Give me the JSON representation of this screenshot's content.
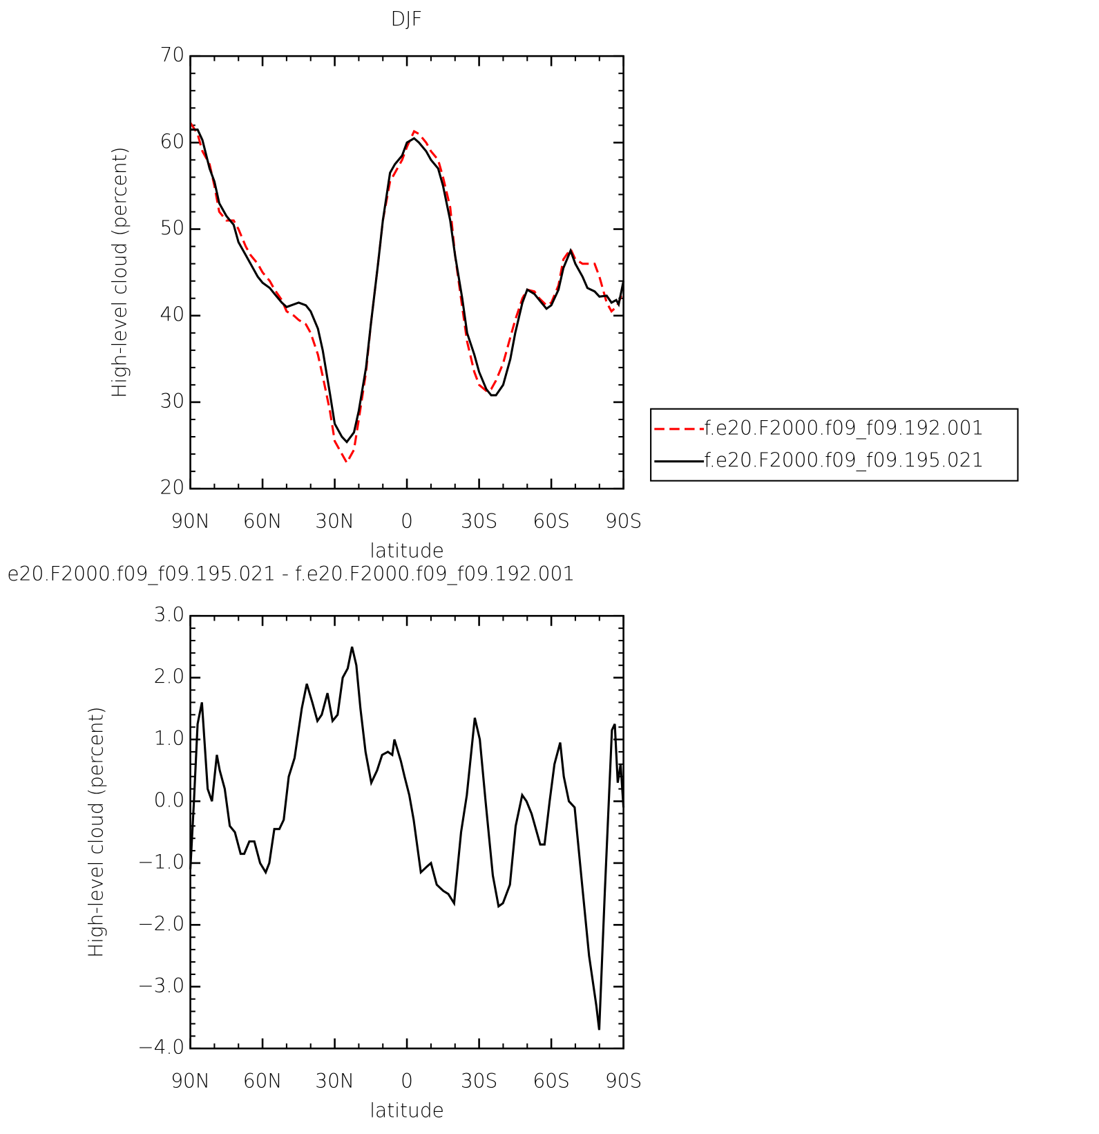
{
  "chart_data": [
    {
      "type": "line",
      "title": "DJF",
      "xlabel": "latitude",
      "ylabel": "High-level cloud (percent)",
      "x": [
        90,
        87,
        85,
        82,
        80,
        78,
        75,
        72,
        70,
        67,
        65,
        62,
        60,
        57,
        55,
        52,
        50,
        47,
        45,
        42,
        40,
        37,
        35,
        32,
        30,
        27,
        25,
        22,
        20,
        17,
        15,
        12,
        10,
        7,
        5,
        2,
        0,
        -3,
        -5,
        -8,
        -10,
        -13,
        -15,
        -18,
        -20,
        -23,
        -25,
        -28,
        -30,
        -33,
        -35,
        -37,
        -40,
        -43,
        -45,
        -48,
        -50,
        -53,
        -55,
        -58,
        -60,
        -63,
        -65,
        -68,
        -70,
        -73,
        -75,
        -78,
        -80,
        -83,
        -85,
        -87,
        -88,
        -90
      ],
      "series": [
        {
          "name": "f.e20.F2000.f09_f09.192.001",
          "color": "#ff0000",
          "line_style": "dashed",
          "values": [
            62.3,
            61,
            59,
            57.5,
            55,
            52,
            51,
            51,
            50,
            48,
            47,
            46,
            45,
            44,
            43,
            41.8,
            40.5,
            40,
            39.5,
            39,
            38,
            35.5,
            33,
            29,
            25.5,
            24,
            23,
            24.5,
            28,
            33.5,
            39,
            46,
            51,
            55.5,
            56.5,
            58,
            59.5,
            61.3,
            61,
            60,
            59,
            58,
            56,
            52.5,
            47,
            41,
            37,
            33.5,
            32,
            31.3,
            31.5,
            32.5,
            34.5,
            37.5,
            39.5,
            42,
            43,
            42.8,
            42,
            41.2,
            41.5,
            43.5,
            46.5,
            47.7,
            46.5,
            46,
            46,
            46,
            44.5,
            41.5,
            40.5,
            41,
            41.5,
            43
          ]
        },
        {
          "name": "f.e20.F2000.f09_f09.195.021",
          "color": "#000000",
          "line_style": "solid",
          "values": [
            61.5,
            61.5,
            60.3,
            57,
            55.5,
            53,
            51.5,
            50.5,
            48.5,
            47,
            46,
            44.5,
            43.8,
            43.2,
            42.5,
            41.5,
            41,
            41.3,
            41.5,
            41.2,
            40.5,
            38.5,
            36,
            31,
            27.5,
            26,
            25.4,
            26.5,
            29,
            34,
            39,
            46,
            51,
            56.5,
            57.5,
            58.5,
            60,
            60.5,
            60,
            59,
            58,
            57,
            55,
            51,
            47,
            42,
            38,
            35.5,
            33.5,
            31.5,
            30.8,
            30.8,
            32,
            35,
            38,
            41.5,
            43,
            42.5,
            41.8,
            40.8,
            41.2,
            43,
            45.5,
            47.5,
            46,
            44.5,
            43.2,
            42.8,
            42.2,
            42.3,
            41.5,
            41.8,
            41.3,
            44
          ]
        }
      ],
      "xlim": [
        90,
        -90
      ],
      "xticks": [
        {
          "value": 90,
          "label": "90N"
        },
        {
          "value": 60,
          "label": "60N"
        },
        {
          "value": 30,
          "label": "30N"
        },
        0,
        {
          "value": -30,
          "label": "30S"
        },
        {
          "value": -60,
          "label": "60S"
        },
        {
          "value": -90,
          "label": "90S"
        }
      ],
      "ylim": [
        20,
        70
      ],
      "yticks": [
        20,
        30,
        40,
        50,
        60,
        70
      ],
      "legend": "right"
    },
    {
      "type": "line",
      "title": "e20.F2000.f09_f09.195.021 - f.e20.F2000.f09_f09.192.001",
      "xlabel": "latitude",
      "ylabel": "High-level cloud (percent)",
      "x": [
        90,
        88.5,
        87,
        85.2,
        82.8,
        81,
        79,
        77.8,
        75.7,
        73.6,
        71.5,
        69.1,
        67.6,
        65.5,
        63.4,
        61,
        58.7,
        57.2,
        55.1,
        53,
        51.2,
        49.1,
        46.7,
        43.7,
        41.6,
        39.3,
        37.2,
        35.4,
        33,
        30.9,
        28.8,
        26.7,
        24.6,
        22.8,
        21,
        19.3,
        17.2,
        14.8,
        12.4,
        10.3,
        7.9,
        6.1,
        5.2,
        2.5,
        1,
        -1,
        -2.8,
        -5.8,
        -8.5,
        -10,
        -12.4,
        -15.1,
        -17.2,
        -19.6,
        -22.5,
        -24.9,
        -28.2,
        -30.3,
        -32.7,
        -35.7,
        -38.1,
        -39.9,
        -42.8,
        -45.2,
        -47.9,
        -49.7,
        -51.8,
        -55.4,
        -57.2,
        -59.3,
        -61.3,
        -63.7,
        -65.2,
        -67.3,
        -69.7,
        -72.7,
        -75.7,
        -78.7,
        -79.9,
        -82.2,
        -85.2,
        -86.4,
        -87.6,
        -88.8,
        -90
      ],
      "values": [
        -1.1,
        0,
        1.25,
        1.6,
        0.2,
        0,
        0.75,
        0.5,
        0.2,
        -0.4,
        -0.5,
        -0.85,
        -0.85,
        -0.65,
        -0.65,
        -1,
        -1.15,
        -1,
        -0.45,
        -0.45,
        -0.3,
        0.4,
        0.7,
        1.5,
        1.9,
        1.6,
        1.3,
        1.4,
        1.75,
        1.3,
        1.4,
        2,
        2.15,
        2.5,
        2.2,
        1.5,
        0.8,
        0.3,
        0.5,
        0.75,
        0.8,
        0.75,
        1,
        0.65,
        0.4,
        0.1,
        -0.3,
        -1.15,
        -1.05,
        -1,
        -1.35,
        -1.45,
        -1.5,
        -1.65,
        -0.5,
        0.1,
        1.35,
        1,
        0,
        -1.2,
        -1.7,
        -1.65,
        -1.35,
        -0.4,
        0.1,
        0,
        -0.2,
        -0.7,
        -0.7,
        0,
        0.6,
        0.95,
        0.4,
        0,
        -0.1,
        -1.3,
        -2.5,
        -3.3,
        -3.7,
        -1.5,
        1.15,
        1.25,
        0.3,
        0.6,
        -0.1
      ],
      "color": "#000000",
      "xlim": [
        90,
        -90
      ],
      "xticks": [
        {
          "value": 90,
          "label": "90N"
        },
        {
          "value": 60,
          "label": "60N"
        },
        {
          "value": 30,
          "label": "30N"
        },
        0,
        {
          "value": -30,
          "label": "30S"
        },
        {
          "value": -60,
          "label": "60S"
        },
        {
          "value": -90,
          "label": "90S"
        }
      ],
      "ylim": [
        -4,
        3
      ],
      "yticks": [
        {
          "value": -4,
          "label": "−4.0"
        },
        {
          "value": -3,
          "label": "−3.0"
        },
        {
          "value": -2,
          "label": "−2.0"
        },
        {
          "value": -1,
          "label": "−1.0"
        },
        {
          "value": 0,
          "label": "0.0"
        },
        {
          "value": 1,
          "label": "1.0"
        },
        {
          "value": 2,
          "label": "2.0"
        },
        {
          "value": 3,
          "label": "3.0"
        }
      ]
    }
  ]
}
